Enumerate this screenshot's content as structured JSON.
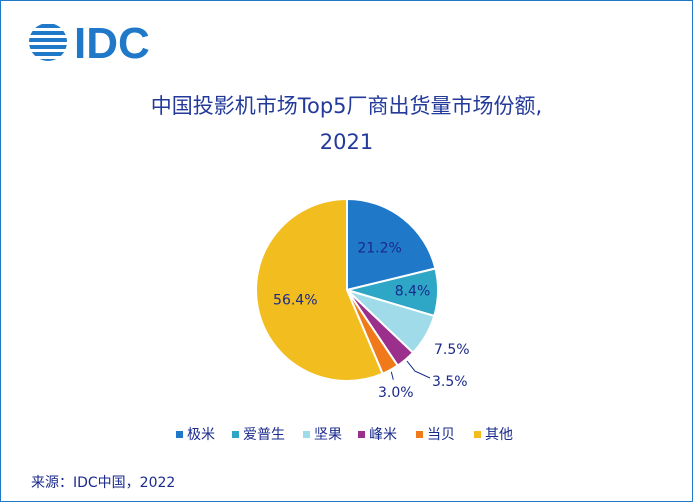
{
  "logo": {
    "text": "IDC"
  },
  "title": {
    "line1": "中国投影机市场Top5厂商出货量市场份额,",
    "line2": "2021"
  },
  "source": "来源：IDC中国，2022",
  "chart_data": {
    "type": "pie",
    "title": "中国投影机市场Top5厂商出货量市场份额, 2021",
    "slices": [
      {
        "name": "极米",
        "value": 21.2,
        "label": "21.2%",
        "color": "#1f78c8"
      },
      {
        "name": "爱普生",
        "value": 8.4,
        "label": "8.4%",
        "color": "#2ea7c6"
      },
      {
        "name": "坚果",
        "value": 7.5,
        "label": "7.5%",
        "color": "#9fdbe8"
      },
      {
        "name": "峰米",
        "value": 3.5,
        "label": "3.5%",
        "color": "#9b2f8c"
      },
      {
        "name": "当贝",
        "value": 3.0,
        "label": "3.0%",
        "color": "#f07a1a"
      },
      {
        "name": "其他",
        "value": 56.4,
        "label": "56.4%",
        "color": "#f2bd1e"
      }
    ],
    "legend_position": "bottom"
  }
}
